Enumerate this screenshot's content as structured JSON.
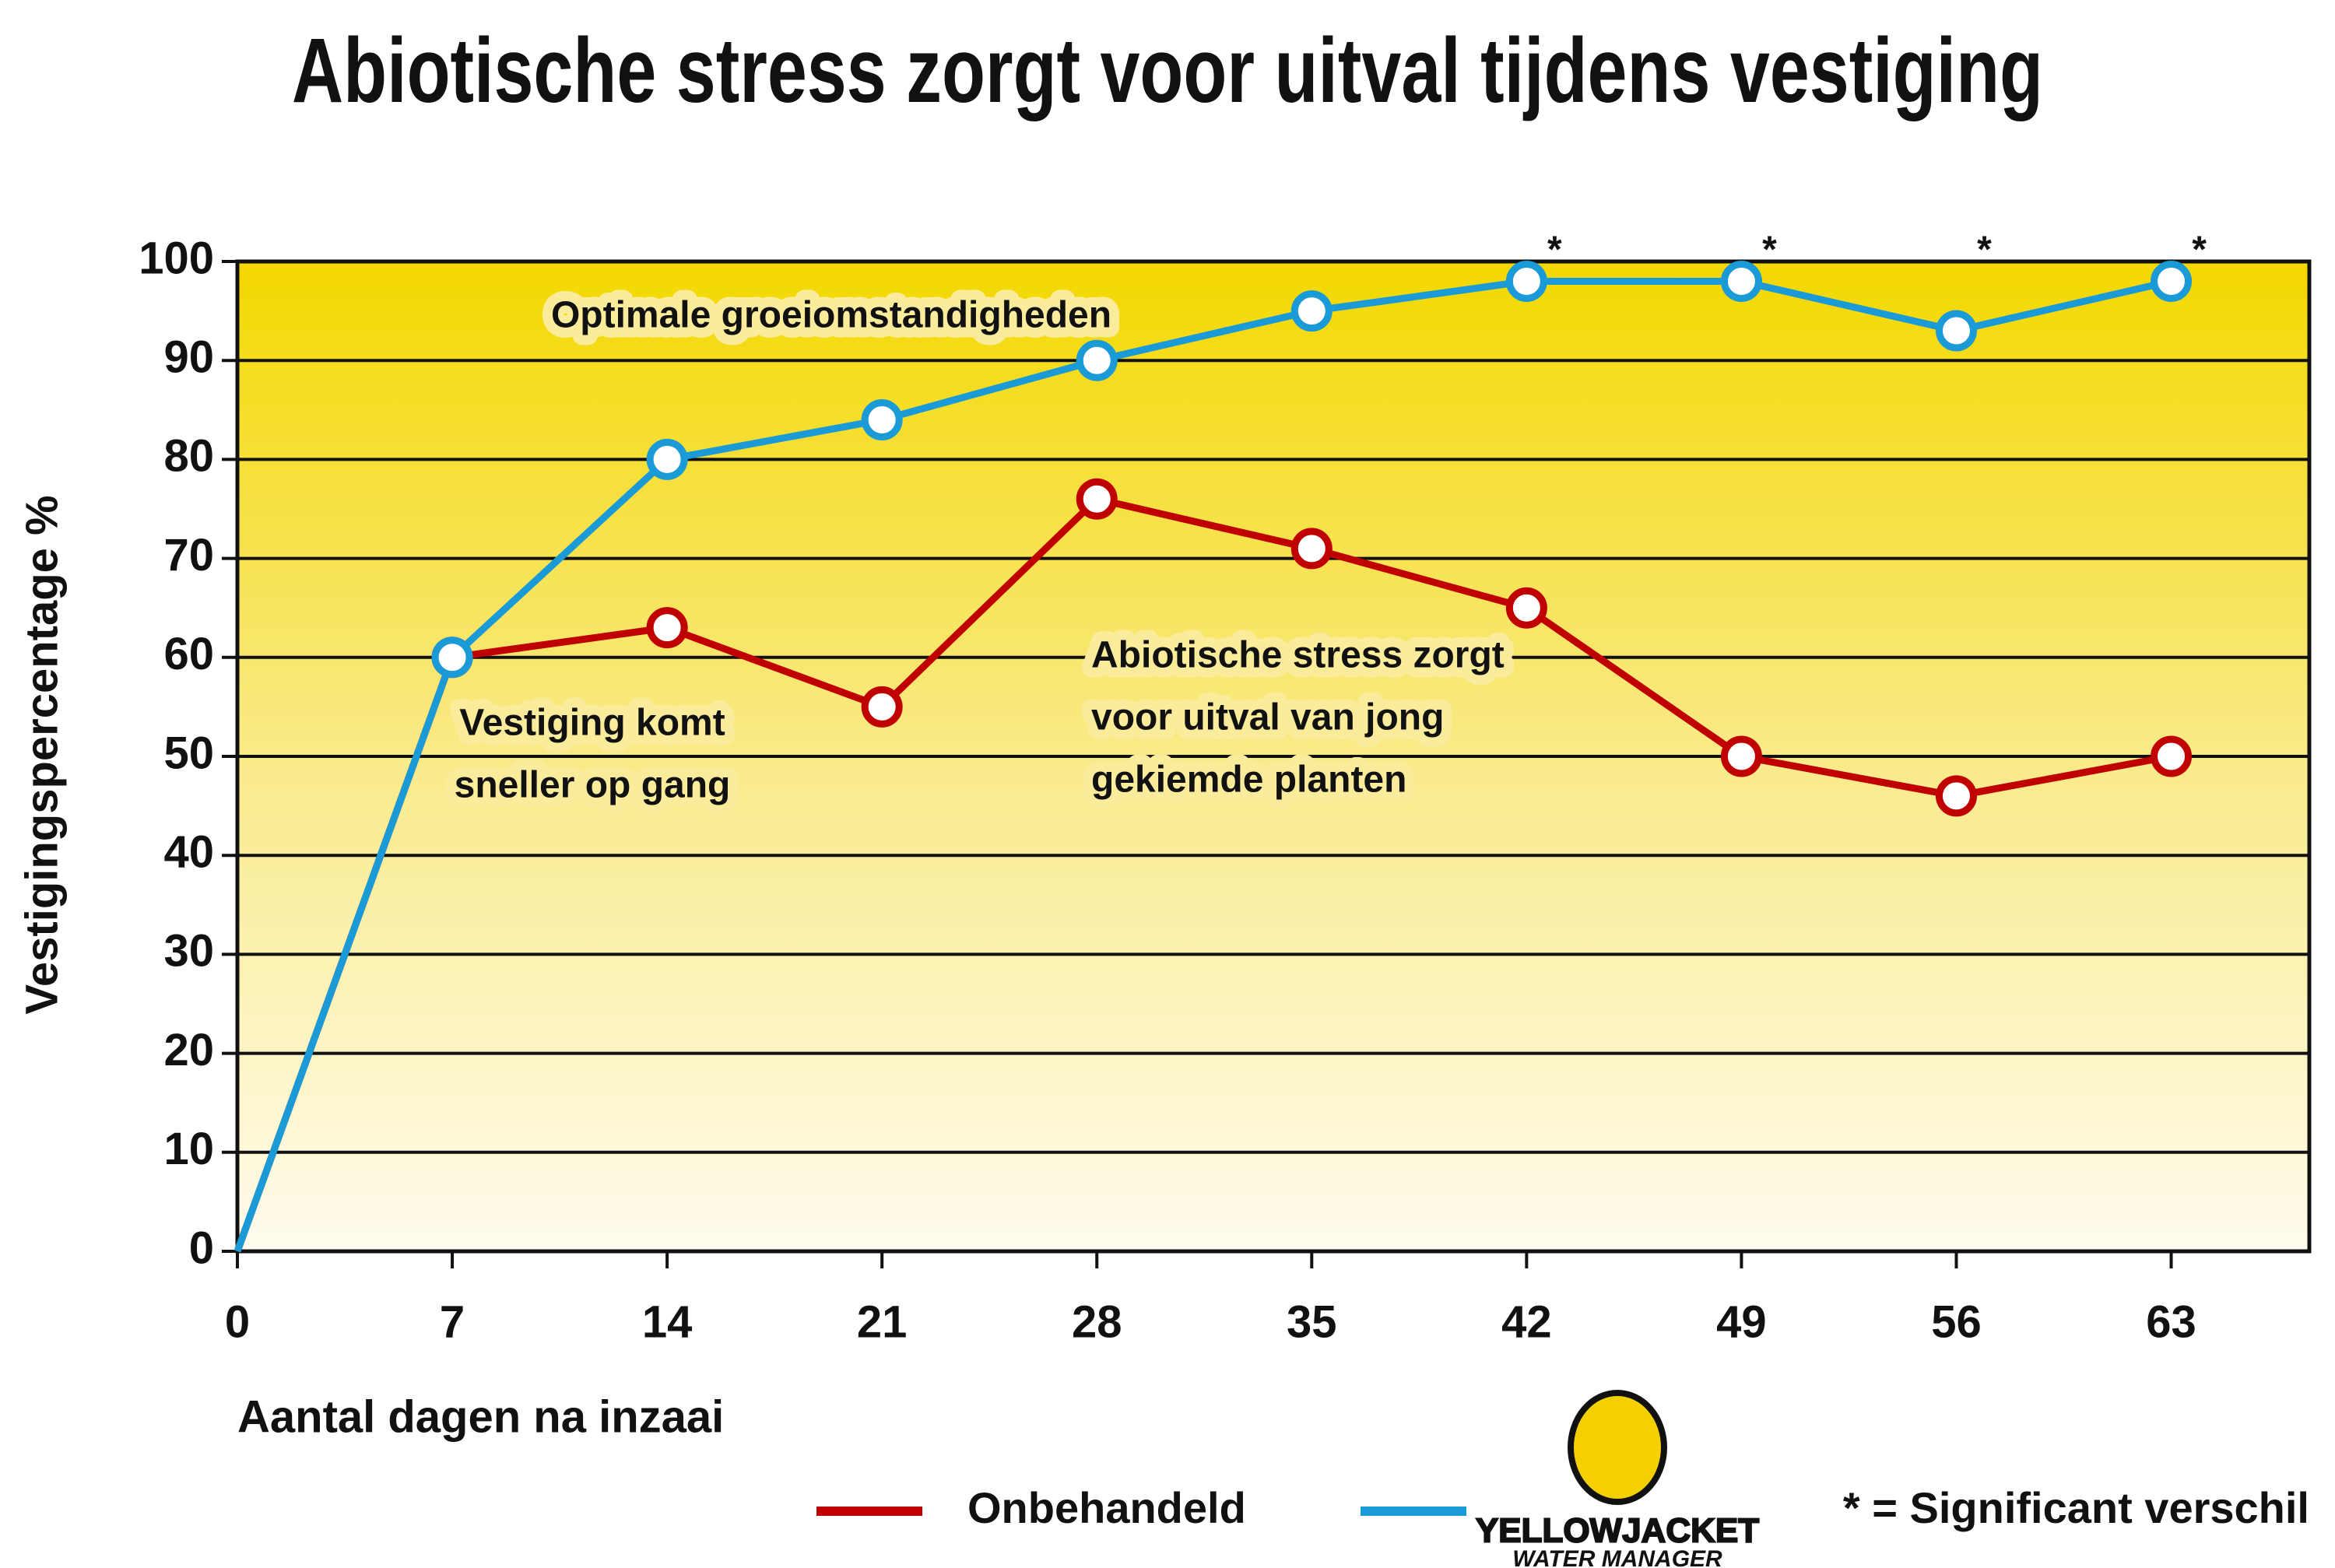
{
  "chart_data": {
    "type": "line",
    "title": "Abiotische stress zorgt voor uitval tijdens vestiging",
    "xlabel": "Aantal dagen na inzaai",
    "ylabel": "Vestigingspercentage %",
    "x": [
      0,
      7,
      14,
      21,
      28,
      35,
      42,
      49,
      56,
      63
    ],
    "series": [
      {
        "name": "Onbehandeld",
        "color": "#c00000",
        "values": [
          0,
          60,
          63,
          55,
          76,
          71,
          65,
          50,
          46,
          50
        ]
      },
      {
        "name": "YELLOWJACKET",
        "color": "#1a9ad6",
        "values": [
          0,
          60,
          80,
          84,
          90,
          95,
          98,
          98,
          93,
          98
        ]
      }
    ],
    "logo_subtitle": "WATER MANAGER",
    "xlim": [
      0,
      67.5
    ],
    "xticks": [
      0,
      7,
      14,
      21,
      28,
      35,
      42,
      49,
      56,
      63
    ],
    "ylim": [
      0,
      100
    ],
    "yticks": [
      0,
      10,
      20,
      30,
      40,
      50,
      60,
      70,
      80,
      90,
      100
    ],
    "grid": true,
    "significant_x": [
      42,
      49,
      56,
      63
    ],
    "significance_symbol": "*",
    "footnote": "* = Significant verschil",
    "annotations": [
      {
        "lines": [
          "Optimale groeiomstandigheden"
        ],
        "color": "#1a9ad6"
      },
      {
        "lines": [
          "Vestiging komt",
          "sneller op gang"
        ],
        "color": "#111111"
      },
      {
        "lines": [
          "Abiotische stress zorgt",
          "voor uitval van jong",
          "gekiemde planten"
        ],
        "color": "#b00000"
      }
    ]
  }
}
